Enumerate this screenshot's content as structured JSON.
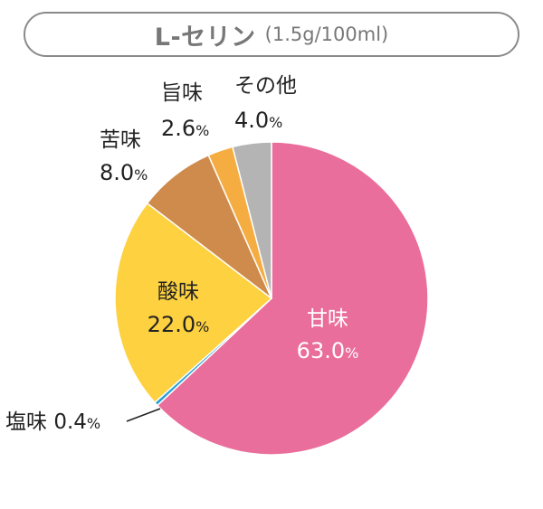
{
  "title": {
    "main": "L-セリン",
    "sub": "(1.5g/100ml)"
  },
  "chart_data": {
    "type": "pie",
    "start_angle_deg": 0,
    "direction": "clockwise",
    "slices": [
      {
        "name": "甘味",
        "value": 63.0,
        "label": "63.0",
        "unit": "%",
        "color": "#ea6e9b",
        "label_color": "#ffffff"
      },
      {
        "name": "塩味",
        "value": 0.4,
        "label": "0.4",
        "unit": "%",
        "color": "#2a9fd6",
        "label_color": "#222222"
      },
      {
        "name": "酸味",
        "value": 22.0,
        "label": "22.0",
        "unit": "%",
        "color": "#fdd13f",
        "label_color": "#222222"
      },
      {
        "name": "苦味",
        "value": 8.0,
        "label": "8.0",
        "unit": "%",
        "color": "#cf8b4b",
        "label_color": "#222222"
      },
      {
        "name": "旨味",
        "value": 2.6,
        "label": "2.6",
        "unit": "%",
        "color": "#f5ad42",
        "label_color": "#222222"
      },
      {
        "name": "その他",
        "value": 4.0,
        "label": "4.0",
        "unit": "%",
        "color": "#b4b4b4",
        "label_color": "#222222"
      }
    ]
  }
}
